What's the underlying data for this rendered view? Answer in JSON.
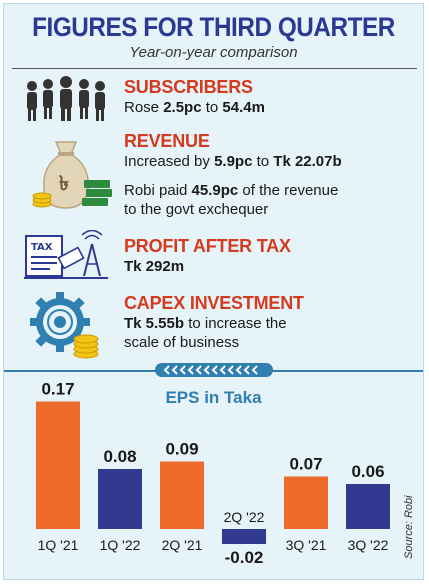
{
  "header": {
    "title": "FIGURES FOR THIRD QUARTER",
    "subtitle": "Year-on-year comparison"
  },
  "subscribers": {
    "heading": "SUBSCRIBERS",
    "line_a": "Rose ",
    "value_a": "2.5pc",
    "line_b": " to ",
    "value_b": "54.4m"
  },
  "revenue": {
    "heading": "REVENUE",
    "line1_a": "Increased by ",
    "line1_v1": "5.9pc",
    "line1_b": " to ",
    "line1_v2": "Tk 22.07b",
    "line2_a": "Robi paid ",
    "line2_v": "45.9pc",
    "line2_b": " of the revenue",
    "line3": "to the govt exchequer"
  },
  "profit": {
    "heading": "PROFIT AFTER TAX",
    "value": "Tk 292m"
  },
  "capex": {
    "heading": "CAPEX INVESTMENT",
    "value": "Tk 5.55b",
    "line1_rest": " to increase the",
    "line2": "scale of business"
  },
  "icons": {
    "subscribers": "people-group-icon",
    "revenue": "money-bag-coins-icon",
    "profit": "tax-document-icon",
    "capex": "gear-coins-icon"
  },
  "colors": {
    "title": "#2b3894",
    "heading": "#d63a1e",
    "bar_orange": "#ee6a2b",
    "bar_navy": "#313a8f",
    "accent_blue": "#2f7fb0",
    "background": "#e6f3f8"
  },
  "source": "Source: Robi",
  "chart_data": {
    "type": "bar",
    "title": "EPS in Taka",
    "categories": [
      "1Q '21",
      "1Q '22",
      "2Q '21",
      "2Q '22",
      "3Q '21",
      "3Q '22"
    ],
    "value_labels": [
      "0.17",
      "0.08",
      "0.09",
      "-0.02",
      "0.07",
      "0.06"
    ],
    "values": [
      0.17,
      0.08,
      0.09,
      -0.02,
      0.07,
      0.06
    ],
    "bar_colors": [
      "#ee6a2b",
      "#313a8f",
      "#ee6a2b",
      "#313a8f",
      "#ee6a2b",
      "#313a8f"
    ],
    "xlabel": "",
    "ylabel": "",
    "grid": false
  }
}
